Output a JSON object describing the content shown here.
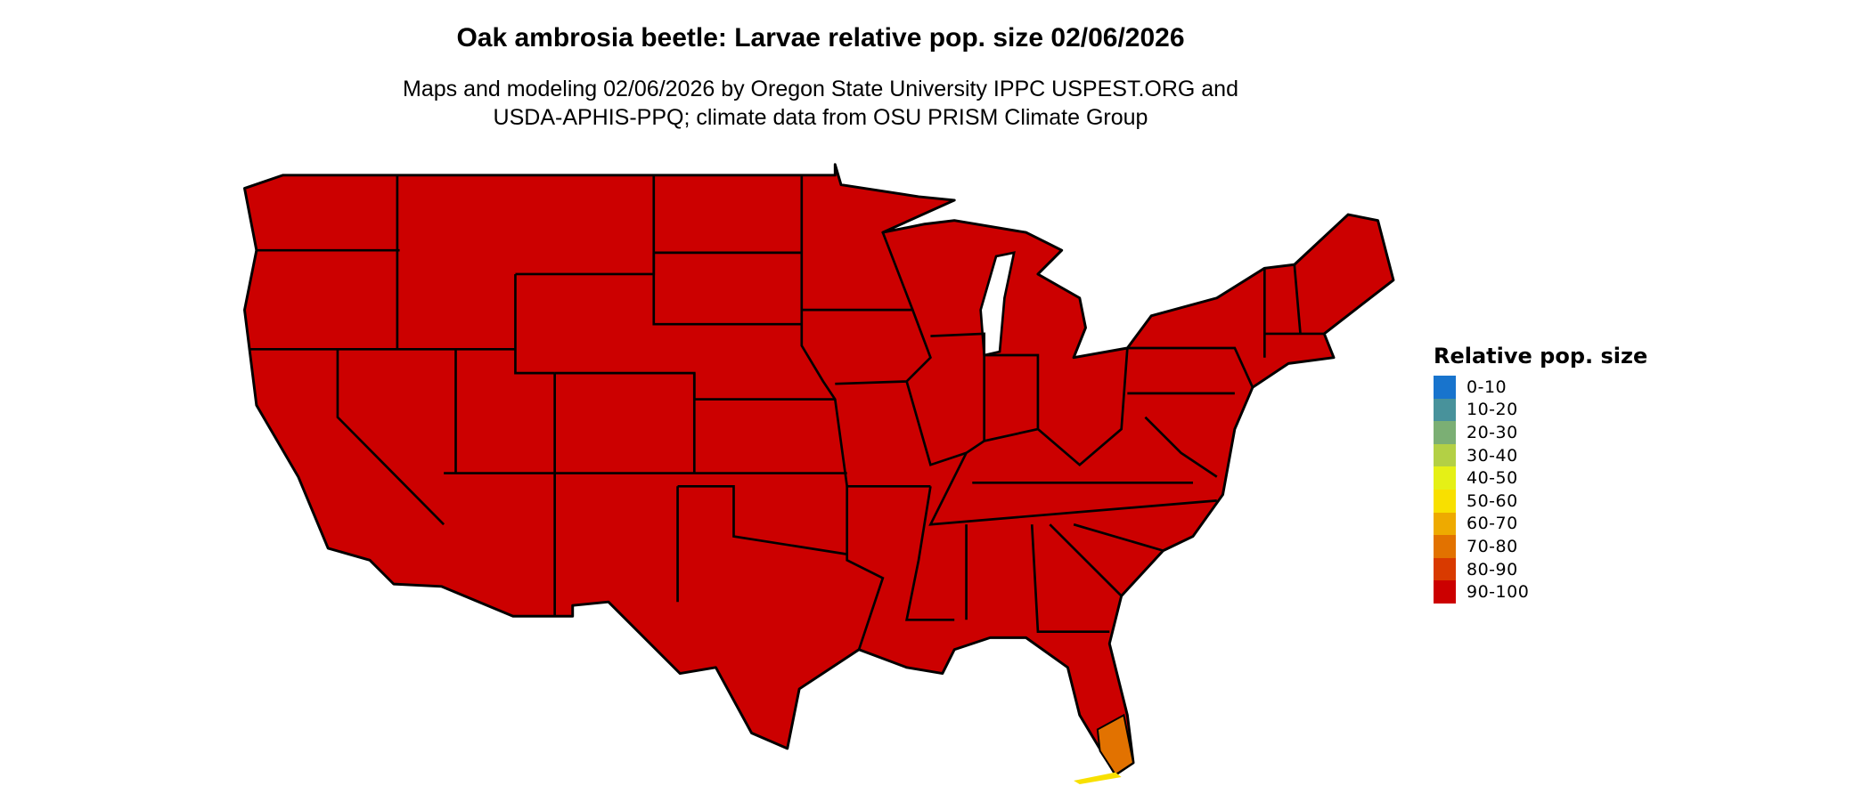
{
  "title": "Oak ambrosia beetle: Larvae relative pop. size 02/06/2026",
  "subtitle_line1": "Maps and modeling 02/06/2026 by Oregon State University IPPC USPEST.ORG and",
  "subtitle_line2": "USDA-APHIS-PPQ; climate data from OSU PRISM Climate Group",
  "map": {
    "region": "Contiguous United States",
    "dominant_class": "90-100",
    "south_florida_class": "70-80",
    "florida_keys_class": "50-60"
  },
  "legend": {
    "title": "Relative pop. size",
    "items": [
      {
        "label": "0-10",
        "color": "#1874CD"
      },
      {
        "label": "10-20",
        "color": "#48929B"
      },
      {
        "label": "20-30",
        "color": "#7BAF74"
      },
      {
        "label": "30-40",
        "color": "#B3D045"
      },
      {
        "label": "40-50",
        "color": "#E5F016"
      },
      {
        "label": "50-60",
        "color": "#F8E000"
      },
      {
        "label": "60-70",
        "color": "#EEAA00"
      },
      {
        "label": "70-80",
        "color": "#E27200"
      },
      {
        "label": "80-90",
        "color": "#D93A00"
      },
      {
        "label": "90-100",
        "color": "#CC0000"
      }
    ]
  }
}
